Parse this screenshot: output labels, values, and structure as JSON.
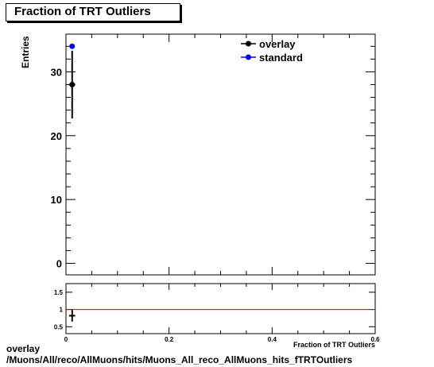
{
  "title": "Fraction of TRT Outliers",
  "caption": {
    "line1": "overlay",
    "line2": "/Muons/All/reco/AllMuons/hits/Muons_All_reco_AllMuons_hits_fTRTOutliers"
  },
  "chart_data": [
    {
      "type": "scatter",
      "title": "Fraction of TRT Outliers",
      "xlabel": "Fraction of TRT Outliers",
      "ylabel": "Entries",
      "xlim": [
        0,
        0.6
      ],
      "ylim": [
        -1.8,
        35.9
      ],
      "yticks": [
        0,
        10,
        20,
        30
      ],
      "legend": {
        "placement": "top-right",
        "entries": [
          "overlay",
          "standard"
        ]
      },
      "series": [
        {
          "name": "overlay",
          "color": "#000000",
          "x": [
            0.012
          ],
          "y": [
            28
          ],
          "yerr": [
            5.3
          ],
          "xerr": [
            0.006
          ]
        },
        {
          "name": "standard",
          "color": "#0000ff",
          "x": [
            0.012
          ],
          "y": [
            34
          ],
          "yerr": [
            0
          ],
          "xerr": [
            0
          ]
        }
      ]
    },
    {
      "type": "scatter",
      "xlabel": "Fraction of TRT Outliers",
      "ylabel": "",
      "xlim": [
        0,
        0.6
      ],
      "ylim": [
        0.3,
        1.75
      ],
      "xticks": [
        0,
        0.2,
        0.4,
        0.6
      ],
      "xtick_labels": [
        "0",
        "0.2",
        "0.4",
        "0.6"
      ],
      "yticks": [
        0.5,
        1,
        1.5
      ],
      "ytick_labels": [
        "0.5",
        "1",
        "1.5"
      ],
      "reference_line": {
        "y": 1,
        "color": "#cc0000"
      },
      "series": [
        {
          "name": "",
          "color": "#000000",
          "x": [
            0.012
          ],
          "y": [
            0.82
          ],
          "yerr": [
            0.17
          ],
          "xerr": [
            0.006
          ]
        }
      ]
    }
  ]
}
